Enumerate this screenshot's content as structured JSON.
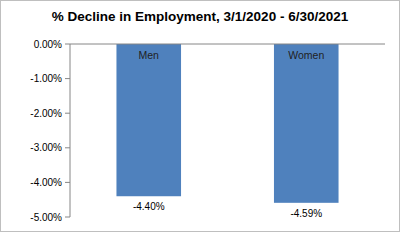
{
  "chart_data": {
    "type": "bar",
    "title": "% Decline in Employment, 3/1/2020 - 6/30/2021",
    "categories": [
      "Men",
      "Women"
    ],
    "values": [
      -4.4,
      -4.59
    ],
    "value_labels": [
      "-4.40%",
      "-4.59%"
    ],
    "data_labels": true,
    "color": "#4f81bd",
    "ylim": [
      -5,
      0
    ],
    "yticks": [
      {
        "value": 0,
        "label": "0.00%"
      },
      {
        "value": -1,
        "label": "-1.00%"
      },
      {
        "value": -2,
        "label": "-2.00%"
      },
      {
        "value": -3,
        "label": "-3.00%"
      },
      {
        "value": -4,
        "label": "-4.00%"
      },
      {
        "value": -5,
        "label": "-5.00%"
      }
    ],
    "grid": false
  }
}
